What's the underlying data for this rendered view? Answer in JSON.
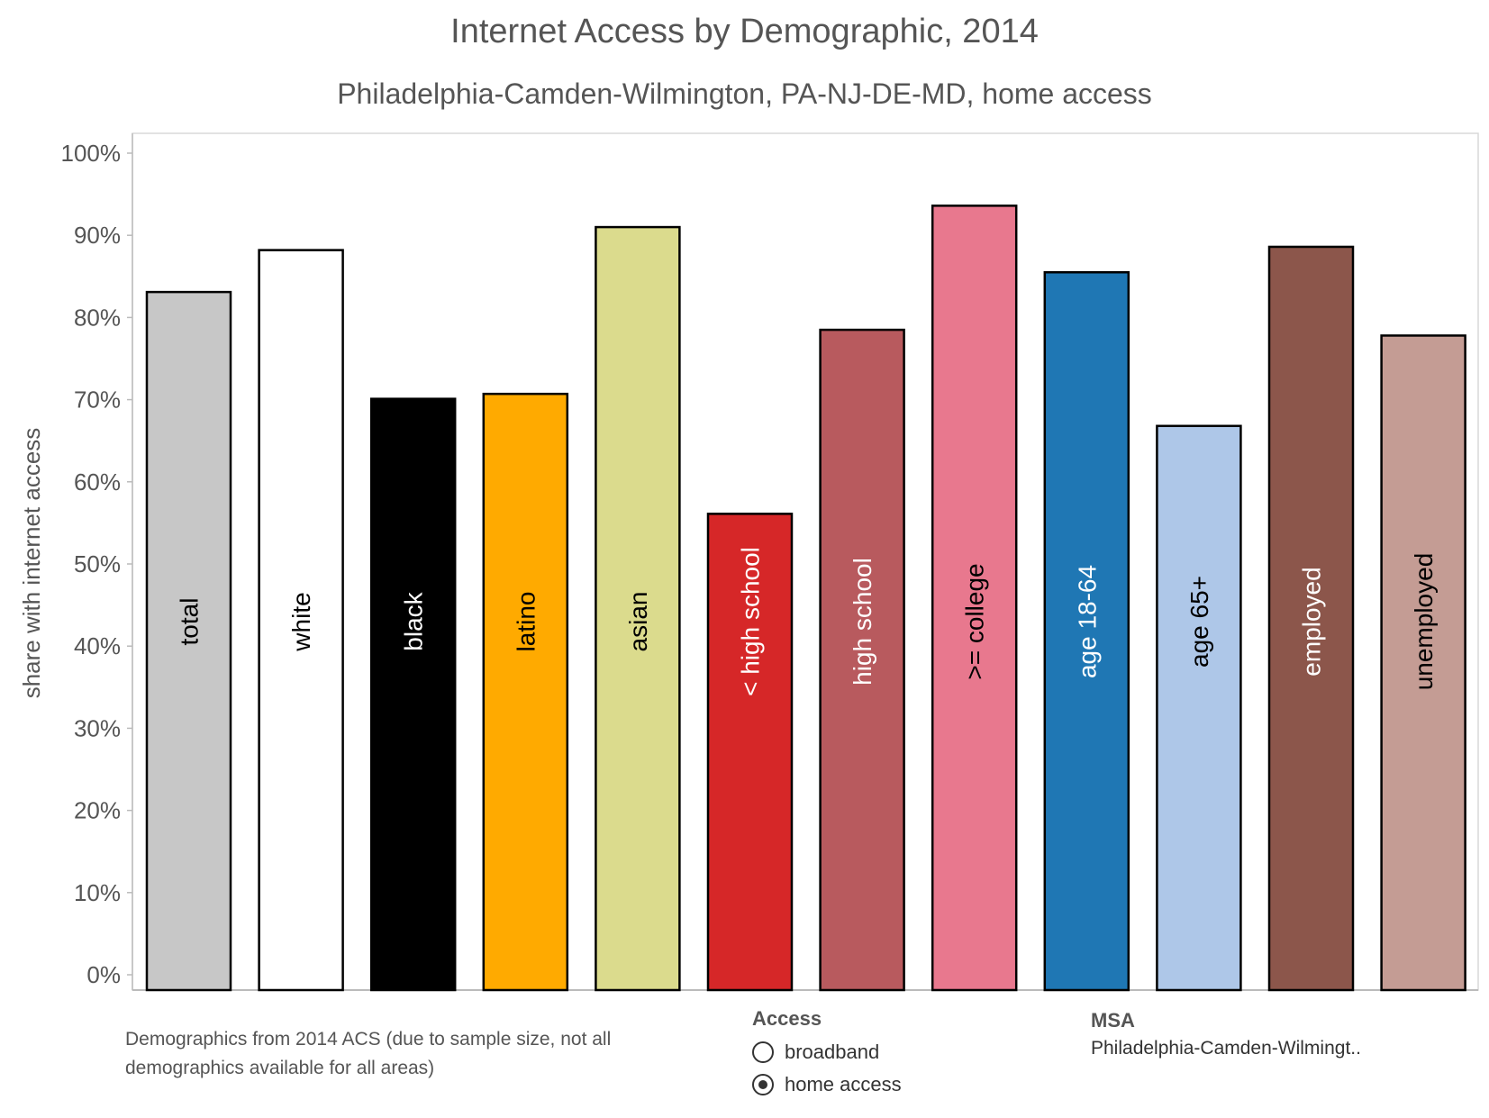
{
  "chart_data": {
    "type": "bar",
    "title": "Internet Access by Demographic, 2014",
    "subtitle": "Philadelphia-Camden-Wilmington, PA-NJ-DE-MD, home access",
    "ylabel": "share with internet access",
    "ylim": [
      0,
      100
    ],
    "yticks": [
      "0%",
      "10%",
      "20%",
      "30%",
      "40%",
      "50%",
      "60%",
      "70%",
      "80%",
      "90%",
      "100%"
    ],
    "grid": false,
    "categories": [
      "total",
      "white",
      "black",
      "latino",
      "asian",
      "< high school",
      "high school",
      ">= college",
      "age 18-64",
      "age 65+",
      "employed",
      "unemployed"
    ],
    "values": [
      83.1,
      88.2,
      70.1,
      70.7,
      91.0,
      56.1,
      78.5,
      93.6,
      85.5,
      66.8,
      88.6,
      77.8
    ],
    "colors": [
      "#c7c7c7",
      "#ffffff",
      "#000000",
      "#ffaa00",
      "#dbdb8d",
      "#d62728",
      "#b85a5e",
      "#e8788e",
      "#1f77b4",
      "#aec7e8",
      "#8c564b",
      "#c49c94"
    ],
    "label_colors": [
      "#000000",
      "#000000",
      "#ffffff",
      "#000000",
      "#000000",
      "#ffffff",
      "#ffffff",
      "#000000",
      "#ffffff",
      "#000000",
      "#ffffff",
      "#000000"
    ]
  },
  "note": "Demographics from 2014 ACS (due to sample size, not all demographics available for all areas)",
  "legend": {
    "title": "Access",
    "items": [
      {
        "label": "broadband",
        "selected": false
      },
      {
        "label": "home access",
        "selected": true
      }
    ]
  },
  "msa": {
    "title": "MSA",
    "value": "Philadelphia-Camden-Wilmingt.."
  }
}
